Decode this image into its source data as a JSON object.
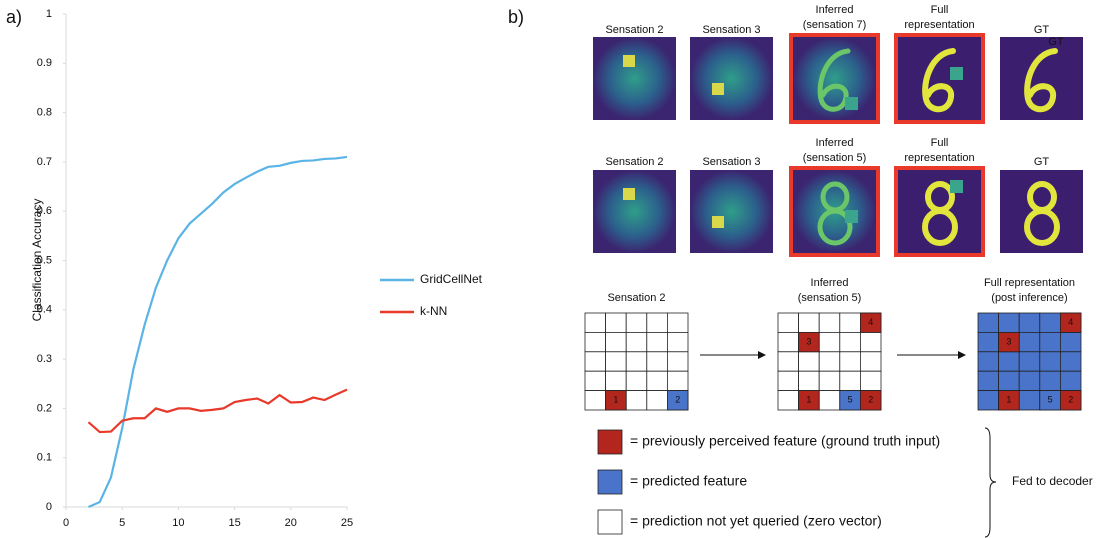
{
  "chart_data": {
    "type": "line",
    "panel_label": "a)",
    "y_label": "Classification Accuracy",
    "x": [
      2,
      3,
      4,
      5,
      6,
      7,
      8,
      9,
      10,
      11,
      12,
      13,
      14,
      15,
      16,
      17,
      18,
      19,
      20,
      21,
      22,
      23,
      24,
      25
    ],
    "series": [
      {
        "name": "GridCellNet",
        "color": "#5ab4e5",
        "values": [
          0,
          0.01,
          0.06,
          0.16,
          0.28,
          0.37,
          0.445,
          0.5,
          0.545,
          0.575,
          0.595,
          0.615,
          0.638,
          0.655,
          0.668,
          0.68,
          0.69,
          0.692,
          0.698,
          0.702,
          0.703,
          0.706,
          0.707,
          0.71
        ]
      },
      {
        "name": "k-NN",
        "color": "#e8392a",
        "values": [
          0.172,
          0.152,
          0.153,
          0.175,
          0.18,
          0.18,
          0.2,
          0.193,
          0.2,
          0.2,
          0.195,
          0.197,
          0.2,
          0.213,
          0.217,
          0.22,
          0.21,
          0.227,
          0.212,
          0.213,
          0.222,
          0.217,
          0.228,
          0.238
        ]
      }
    ],
    "xlim": [
      0,
      25
    ],
    "xticks": [
      0,
      5,
      10,
      15,
      20,
      25
    ],
    "ylim": [
      0,
      1
    ],
    "yticks": [
      0,
      0.1,
      0.2,
      0.3,
      0.4,
      0.5,
      0.6,
      0.7,
      0.8,
      0.9,
      1
    ],
    "legend": "right",
    "grid": false
  },
  "panel_b": {
    "label": "b)",
    "image_rows": [
      {
        "captions": [
          [
            "Sensation 2"
          ],
          [
            "Sensation 3"
          ],
          [
            "Inferred",
            "(sensation 7)"
          ],
          [
            "Full",
            "representation"
          ],
          [
            "GT"
          ]
        ]
      },
      {
        "captions": [
          [
            "Sensation 2"
          ],
          [
            "Sensation 3"
          ],
          [
            "Inferred",
            "(sensation 5)"
          ],
          [
            "Full",
            "representation"
          ],
          [
            "GT"
          ]
        ]
      }
    ],
    "gt_overlay": "GT",
    "grids": [
      {
        "title": [
          "Sensation 2"
        ],
        "cell_labels": [
          "1",
          "2"
        ]
      },
      {
        "title": [
          "Inferred",
          "(sensation 5)"
        ],
        "cell_labels": [
          "4",
          "3",
          "1",
          "5",
          "2"
        ]
      },
      {
        "title": [
          "Full representation",
          "(post inference)"
        ],
        "cell_labels": [
          "4",
          "3",
          "1",
          "5",
          "2"
        ]
      }
    ],
    "legend": [
      "= previously perceived feature (ground truth input)",
      "= predicted feature",
      "= prediction not yet queried (zero vector)"
    ],
    "bracket_label": "Fed to decoder"
  }
}
